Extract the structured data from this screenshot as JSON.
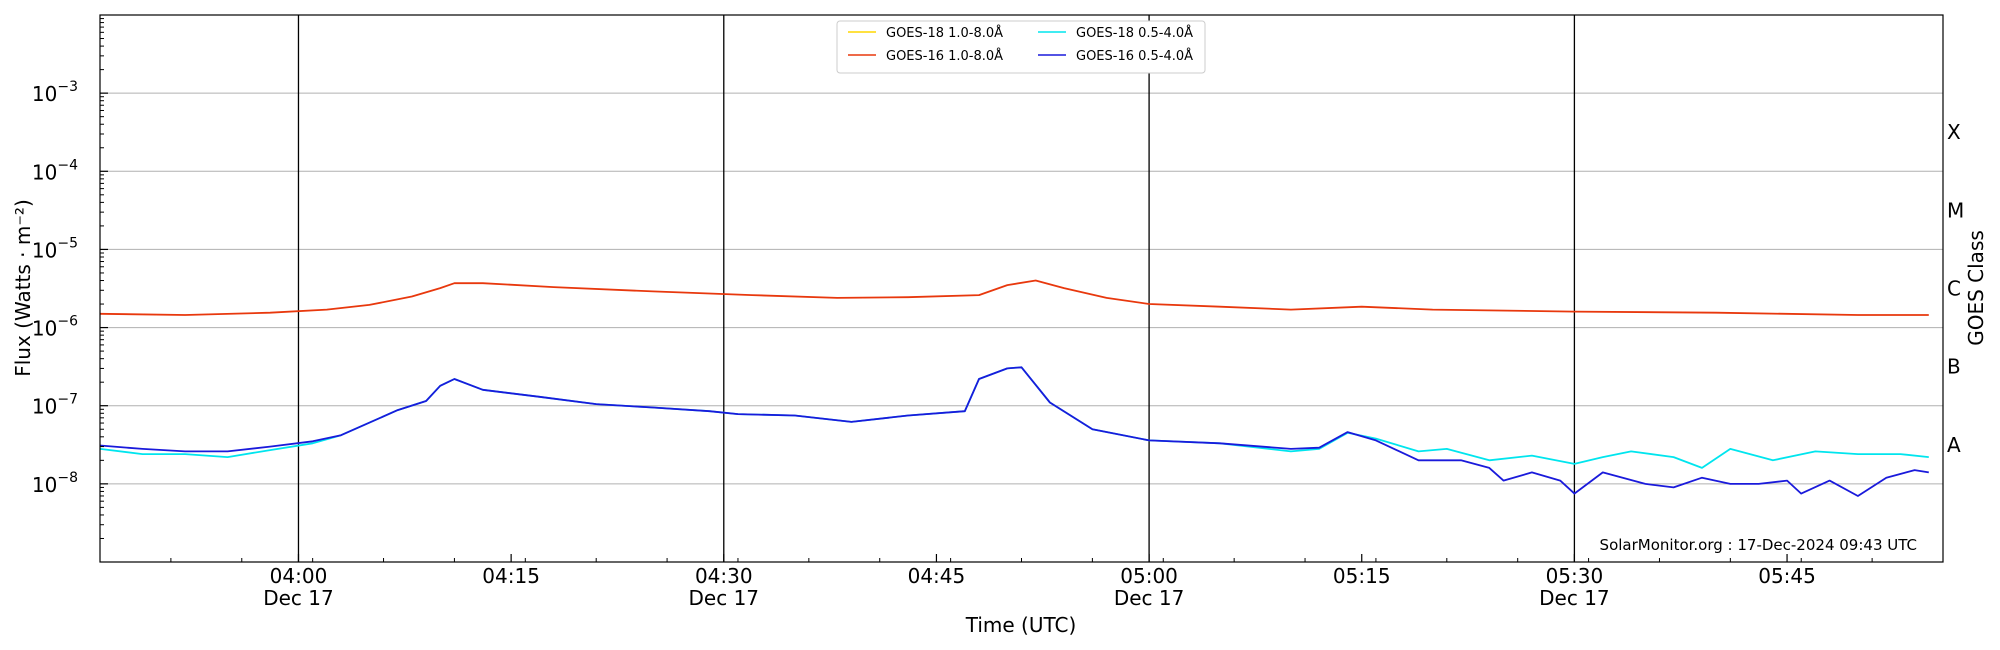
{
  "chart_data": {
    "type": "line",
    "xlabel": "Time (UTC)",
    "ylabel": "Flux (Watts · m⁻²)",
    "ylabel_right": "GOES Class",
    "credit": "SolarMonitor.org : 17-Dec-2024 09:43 UTC",
    "y_scale": "log",
    "ylim": [
      1e-09,
      0.01
    ],
    "xlim": [
      "2024-12-17T03:46",
      "2024-12-17T05:56"
    ],
    "grid": "horizontal at decades",
    "legend_position": "top-center",
    "x_ticks": [
      {
        "time": "2024-12-17T04:00",
        "label": "04:00",
        "sublabel": "Dec 17"
      },
      {
        "time": "2024-12-17T04:15",
        "label": "04:15",
        "sublabel": ""
      },
      {
        "time": "2024-12-17T04:30",
        "label": "04:30",
        "sublabel": "Dec 17"
      },
      {
        "time": "2024-12-17T04:45",
        "label": "04:45",
        "sublabel": ""
      },
      {
        "time": "2024-12-17T05:00",
        "label": "05:00",
        "sublabel": "Dec 17"
      },
      {
        "time": "2024-12-17T05:15",
        "label": "05:15",
        "sublabel": ""
      },
      {
        "time": "2024-12-17T05:30",
        "label": "05:30",
        "sublabel": "Dec 17"
      },
      {
        "time": "2024-12-17T05:45",
        "label": "05:45",
        "sublabel": ""
      }
    ],
    "vertical_lines": [
      "2024-12-17T04:00",
      "2024-12-17T04:30",
      "2024-12-17T05:00",
      "2024-12-17T05:30"
    ],
    "y_ticks": [
      {
        "value": 1e-08,
        "base": "10",
        "exp": "−8"
      },
      {
        "value": 1e-07,
        "base": "10",
        "exp": "−7"
      },
      {
        "value": 1e-06,
        "base": "10",
        "exp": "−6"
      },
      {
        "value": 1e-05,
        "base": "10",
        "exp": "−5"
      },
      {
        "value": 0.0001,
        "base": "10",
        "exp": "−4"
      },
      {
        "value": 0.001,
        "base": "10",
        "exp": "−3"
      }
    ],
    "goes_classes": [
      {
        "label": "A",
        "value": 3.16e-08
      },
      {
        "label": "B",
        "value": 3.16e-07
      },
      {
        "label": "C",
        "value": 3.16e-06
      },
      {
        "label": "M",
        "value": 3.16e-05
      },
      {
        "label": "X",
        "value": 0.000316
      }
    ],
    "series": [
      {
        "name": "GOES-18 1.0-8.0Å",
        "color": "#ffd700",
        "points": []
      },
      {
        "name": "GOES-18 0.5-4.0Å",
        "color": "#00e5ee",
        "points": [
          [
            "2024-12-17T03:46",
            2.8e-08
          ],
          [
            "2024-12-17T03:49",
            2.4e-08
          ],
          [
            "2024-12-17T03:52",
            2.4e-08
          ],
          [
            "2024-12-17T03:55",
            2.2e-08
          ],
          [
            "2024-12-17T03:58",
            2.7e-08
          ],
          [
            "2024-12-17T04:01",
            3.3e-08
          ],
          [
            "2024-12-17T04:03",
            4.2e-08
          ],
          [
            "2024-12-17T04:07",
            8.8e-08
          ],
          [
            "2024-12-17T04:09",
            1.15e-07
          ],
          [
            "2024-12-17T04:10",
            1.8e-07
          ],
          [
            "2024-12-17T04:11",
            2.2e-07
          ],
          [
            "2024-12-17T04:13",
            1.6e-07
          ],
          [
            "2024-12-17T04:17",
            1.3e-07
          ],
          [
            "2024-12-17T04:21",
            1.05e-07
          ],
          [
            "2024-12-17T04:25",
            9.5e-08
          ],
          [
            "2024-12-17T04:29",
            8.5e-08
          ],
          [
            "2024-12-17T04:31",
            7.8e-08
          ],
          [
            "2024-12-17T04:35",
            7.5e-08
          ],
          [
            "2024-12-17T04:39",
            6.2e-08
          ],
          [
            "2024-12-17T04:43",
            7.5e-08
          ],
          [
            "2024-12-17T04:47",
            8.5e-08
          ],
          [
            "2024-12-17T04:48",
            2.2e-07
          ],
          [
            "2024-12-17T04:50",
            3e-07
          ],
          [
            "2024-12-17T04:51",
            3.1e-07
          ],
          [
            "2024-12-17T04:53",
            1.1e-07
          ],
          [
            "2024-12-17T04:56",
            5e-08
          ],
          [
            "2024-12-17T05:00",
            3.6e-08
          ],
          [
            "2024-12-17T05:05",
            3.3e-08
          ],
          [
            "2024-12-17T05:10",
            2.6e-08
          ],
          [
            "2024-12-17T05:12",
            2.8e-08
          ],
          [
            "2024-12-17T05:14",
            4.5e-08
          ],
          [
            "2024-12-17T05:16",
            3.8e-08
          ],
          [
            "2024-12-17T05:19",
            2.6e-08
          ],
          [
            "2024-12-17T05:21",
            2.8e-08
          ],
          [
            "2024-12-17T05:24",
            2e-08
          ],
          [
            "2024-12-17T05:27",
            2.3e-08
          ],
          [
            "2024-12-17T05:30",
            1.8e-08
          ],
          [
            "2024-12-17T05:32",
            2.2e-08
          ],
          [
            "2024-12-17T05:34",
            2.6e-08
          ],
          [
            "2024-12-17T05:37",
            2.2e-08
          ],
          [
            "2024-12-17T05:39",
            1.6e-08
          ],
          [
            "2024-12-17T05:41",
            2.8e-08
          ],
          [
            "2024-12-17T05:44",
            2e-08
          ],
          [
            "2024-12-17T05:47",
            2.6e-08
          ],
          [
            "2024-12-17T05:50",
            2.4e-08
          ],
          [
            "2024-12-17T05:53",
            2.4e-08
          ],
          [
            "2024-12-17T05:55",
            2.2e-08
          ]
        ]
      },
      {
        "name": "GOES-16 1.0-8.0Å",
        "color": "#e8380d",
        "points": [
          [
            "2024-12-17T03:46",
            1.5e-06
          ],
          [
            "2024-12-17T03:52",
            1.45e-06
          ],
          [
            "2024-12-17T03:58",
            1.55e-06
          ],
          [
            "2024-12-17T04:02",
            1.7e-06
          ],
          [
            "2024-12-17T04:05",
            1.95e-06
          ],
          [
            "2024-12-17T04:08",
            2.5e-06
          ],
          [
            "2024-12-17T04:10",
            3.2e-06
          ],
          [
            "2024-12-17T04:11",
            3.7e-06
          ],
          [
            "2024-12-17T04:13",
            3.7e-06
          ],
          [
            "2024-12-17T04:18",
            3.3e-06
          ],
          [
            "2024-12-17T04:25",
            2.9e-06
          ],
          [
            "2024-12-17T04:32",
            2.6e-06
          ],
          [
            "2024-12-17T04:38",
            2.4e-06
          ],
          [
            "2024-12-17T04:43",
            2.45e-06
          ],
          [
            "2024-12-17T04:48",
            2.6e-06
          ],
          [
            "2024-12-17T04:50",
            3.5e-06
          ],
          [
            "2024-12-17T04:52",
            4e-06
          ],
          [
            "2024-12-17T04:54",
            3.2e-06
          ],
          [
            "2024-12-17T04:57",
            2.4e-06
          ],
          [
            "2024-12-17T05:00",
            2e-06
          ],
          [
            "2024-12-17T05:05",
            1.85e-06
          ],
          [
            "2024-12-17T05:10",
            1.7e-06
          ],
          [
            "2024-12-17T05:15",
            1.85e-06
          ],
          [
            "2024-12-17T05:20",
            1.7e-06
          ],
          [
            "2024-12-17T05:30",
            1.6e-06
          ],
          [
            "2024-12-17T05:40",
            1.55e-06
          ],
          [
            "2024-12-17T05:50",
            1.45e-06
          ],
          [
            "2024-12-17T05:55",
            1.45e-06
          ]
        ]
      },
      {
        "name": "GOES-16 0.5-4.0Å",
        "color": "#1a1adb",
        "points": [
          [
            "2024-12-17T03:46",
            3.1e-08
          ],
          [
            "2024-12-17T03:49",
            2.8e-08
          ],
          [
            "2024-12-17T03:52",
            2.6e-08
          ],
          [
            "2024-12-17T03:55",
            2.6e-08
          ],
          [
            "2024-12-17T03:58",
            3e-08
          ],
          [
            "2024-12-17T04:01",
            3.5e-08
          ],
          [
            "2024-12-17T04:03",
            4.2e-08
          ],
          [
            "2024-12-17T04:07",
            8.8e-08
          ],
          [
            "2024-12-17T04:09",
            1.15e-07
          ],
          [
            "2024-12-17T04:10",
            1.8e-07
          ],
          [
            "2024-12-17T04:11",
            2.2e-07
          ],
          [
            "2024-12-17T04:13",
            1.6e-07
          ],
          [
            "2024-12-17T04:17",
            1.3e-07
          ],
          [
            "2024-12-17T04:21",
            1.05e-07
          ],
          [
            "2024-12-17T04:25",
            9.5e-08
          ],
          [
            "2024-12-17T04:29",
            8.5e-08
          ],
          [
            "2024-12-17T04:31",
            7.8e-08
          ],
          [
            "2024-12-17T04:35",
            7.5e-08
          ],
          [
            "2024-12-17T04:39",
            6.2e-08
          ],
          [
            "2024-12-17T04:43",
            7.5e-08
          ],
          [
            "2024-12-17T04:47",
            8.5e-08
          ],
          [
            "2024-12-17T04:48",
            2.2e-07
          ],
          [
            "2024-12-17T04:50",
            3e-07
          ],
          [
            "2024-12-17T04:51",
            3.1e-07
          ],
          [
            "2024-12-17T04:53",
            1.1e-07
          ],
          [
            "2024-12-17T04:56",
            5e-08
          ],
          [
            "2024-12-17T05:00",
            3.6e-08
          ],
          [
            "2024-12-17T05:05",
            3.3e-08
          ],
          [
            "2024-12-17T05:10",
            2.8e-08
          ],
          [
            "2024-12-17T05:12",
            2.9e-08
          ],
          [
            "2024-12-17T05:14",
            4.6e-08
          ],
          [
            "2024-12-17T05:16",
            3.6e-08
          ],
          [
            "2024-12-17T05:19",
            2e-08
          ],
          [
            "2024-12-17T05:22",
            2e-08
          ],
          [
            "2024-12-17T05:24",
            1.6e-08
          ],
          [
            "2024-12-17T05:25",
            1.1e-08
          ],
          [
            "2024-12-17T05:27",
            1.4e-08
          ],
          [
            "2024-12-17T05:29",
            1.1e-08
          ],
          [
            "2024-12-17T05:30",
            7.5e-09
          ],
          [
            "2024-12-17T05:32",
            1.4e-08
          ],
          [
            "2024-12-17T05:35",
            1e-08
          ],
          [
            "2024-12-17T05:37",
            9e-09
          ],
          [
            "2024-12-17T05:39",
            1.2e-08
          ],
          [
            "2024-12-17T05:41",
            1e-08
          ],
          [
            "2024-12-17T05:43",
            1e-08
          ],
          [
            "2024-12-17T05:45",
            1.1e-08
          ],
          [
            "2024-12-17T05:46",
            7.5e-09
          ],
          [
            "2024-12-17T05:48",
            1.1e-08
          ],
          [
            "2024-12-17T05:50",
            7e-09
          ],
          [
            "2024-12-17T05:52",
            1.2e-08
          ],
          [
            "2024-12-17T05:54",
            1.5e-08
          ],
          [
            "2024-12-17T05:55",
            1.4e-08
          ]
        ]
      }
    ]
  }
}
